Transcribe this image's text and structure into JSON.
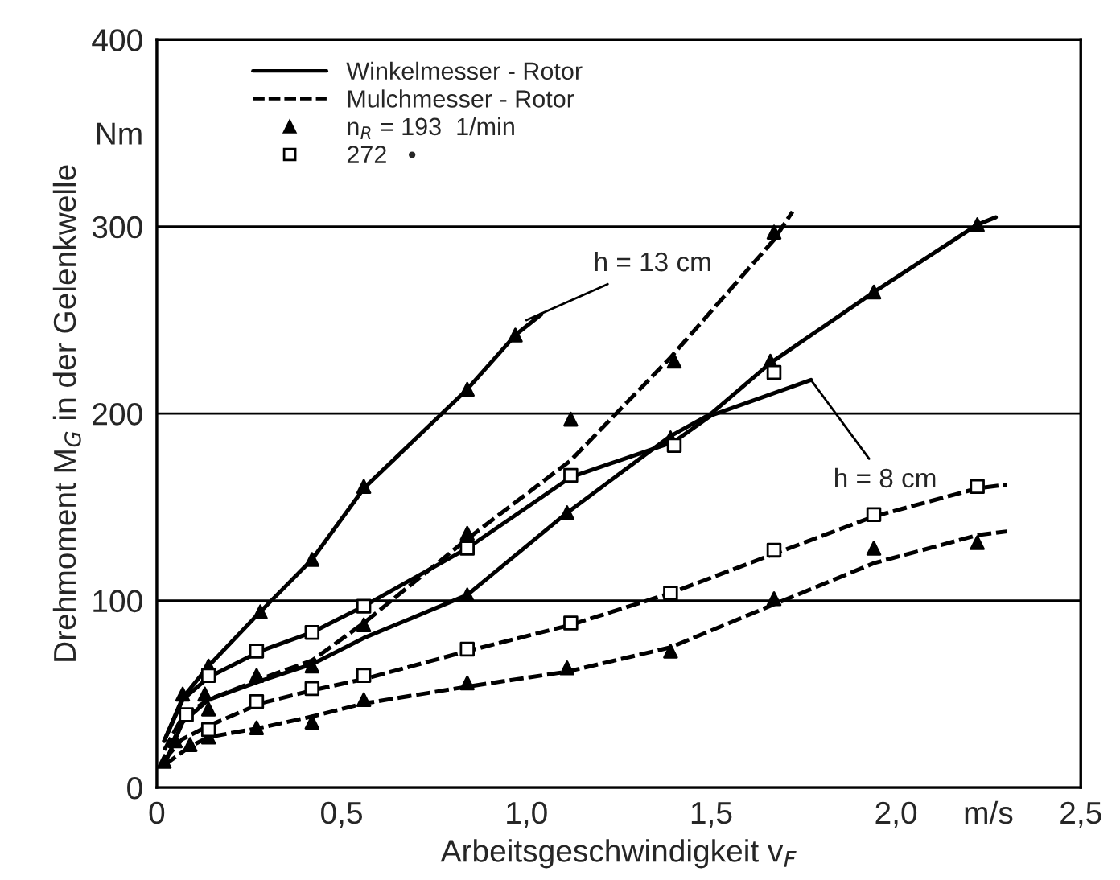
{
  "chart_data": {
    "type": "line",
    "xlabel": "Arbeitsgeschwindigkeit v$_{F}$",
    "ylabel": "Drehmoment M$_{G}$ in der Gelenkwelle",
    "xlim": [
      0,
      2.5
    ],
    "ylim": [
      0,
      400
    ],
    "xticks": [
      0,
      {
        "value": 0.5,
        "label": "0,5"
      },
      {
        "value": 1.0,
        "label": "1,0"
      },
      {
        "value": 1.5,
        "label": "1,5"
      },
      {
        "value": 2.0,
        "label": "2,0"
      },
      {
        "value": 2.25,
        "label": "m/s"
      },
      {
        "value": 2.5,
        "label": "2,5"
      }
    ],
    "yticks": [
      0,
      100,
      200,
      300,
      {
        "value": 350,
        "label": "Nm"
      },
      400
    ],
    "grid": true,
    "legend": "top left",
    "series": [
      {
        "name": "Winkelmesser - Rotor",
        "color": "#000000",
        "line_style": "solid",
        "marker": "none",
        "x": [
          0.02,
          0.07,
          0.14,
          0.28,
          0.42,
          0.56,
          0.84,
          0.97,
          1.04
        ],
        "values": [
          25,
          48,
          65,
          94,
          122,
          160,
          213,
          242,
          253
        ]
      },
      {
        "color": "#000000",
        "line_style": "solid",
        "marker": "none",
        "x": [
          0.02,
          0.07,
          0.14,
          0.28,
          0.42,
          0.56,
          0.84,
          1.11,
          1.39,
          1.5,
          1.66,
          1.94,
          2.22,
          2.27
        ],
        "values": [
          12,
          35,
          47,
          57,
          66,
          80,
          103,
          147,
          188,
          200,
          227,
          265,
          301,
          305
        ]
      },
      {
        "color": "#000000",
        "line_style": "solid",
        "marker": "none",
        "x": [
          0.02,
          0.07,
          0.14,
          0.28,
          0.42,
          0.56,
          0.84,
          1.12,
          1.4,
          1.5,
          1.77
        ],
        "values": [
          25,
          47,
          59,
          73,
          83,
          97,
          128,
          166,
          185,
          199,
          218
        ]
      },
      {
        "name": "Mulchmesser - Rotor",
        "color": "#000000",
        "line_style": "dashed",
        "marker": "none",
        "x": [
          0.02,
          0.07,
          0.14,
          0.28,
          0.42,
          0.56,
          0.84,
          1.12,
          1.39,
          1.67,
          1.72
        ],
        "values": [
          20,
          38,
          47,
          58,
          68,
          88,
          133,
          175,
          230,
          293,
          308
        ]
      },
      {
        "color": "#000000",
        "line_style": "dashed",
        "marker": "none",
        "x": [
          0.02,
          0.07,
          0.14,
          0.28,
          0.42,
          0.56,
          0.84,
          1.12,
          1.39,
          1.67,
          1.94,
          2.22,
          2.3
        ],
        "values": [
          15,
          26,
          33,
          45,
          52,
          58,
          73,
          87,
          104,
          125,
          145,
          160,
          162
        ]
      },
      {
        "color": "#000000",
        "line_style": "dashed",
        "marker": "none",
        "x": [
          0.02,
          0.09,
          0.14,
          0.28,
          0.42,
          0.56,
          0.84,
          1.11,
          1.39,
          1.67,
          1.94,
          2.22,
          2.3
        ],
        "values": [
          12,
          22,
          27,
          32,
          38,
          45,
          54,
          62,
          75,
          98,
          120,
          135,
          137
        ]
      },
      {
        "type": "scatter",
        "name": "n$_{R}$ = 193  1/min",
        "color": "#000000",
        "marker": "triangle",
        "x": [
          0.14,
          0.28,
          0.42,
          0.56,
          0.84,
          0.97,
          0.02,
          0.07,
          0.05,
          0.09,
          0.13,
          0.14,
          0.14,
          0.27,
          0.27,
          0.42,
          0.42,
          0.56,
          0.56,
          0.84,
          0.84,
          0.84,
          1.11,
          1.11,
          1.39,
          1.67,
          1.94,
          2.22,
          1.12,
          1.4,
          1.67,
          1.66,
          1.94,
          2.22,
          1.39
        ],
        "values": [
          65,
          94,
          122,
          161,
          213,
          242,
          14,
          50,
          25,
          23,
          50,
          42,
          27,
          32,
          60,
          65,
          35,
          47,
          87,
          103,
          136,
          56,
          147,
          64,
          73,
          101,
          128,
          131,
          197,
          228,
          297,
          228,
          265,
          301,
          187
        ]
      },
      {
        "type": "scatter",
        "name": "272   •",
        "color": "#000000",
        "marker": "square",
        "x": [
          0.14,
          0.27,
          0.42,
          0.56,
          0.84,
          0.14,
          0.27,
          0.42,
          0.56,
          0.84,
          0.08,
          1.12,
          1.4,
          1.12,
          1.39,
          1.67,
          1.94,
          2.22,
          1.67
        ],
        "values": [
          60,
          73,
          83,
          97,
          128,
          31,
          46,
          53,
          60,
          74,
          39,
          167,
          183,
          88,
          104,
          127,
          146,
          161,
          222
        ]
      }
    ],
    "annotations": [
      {
        "text": "h = 13 cm",
        "x": 1.0,
        "y": 250
      },
      {
        "text": "h = 8 cm",
        "x": 1.77,
        "y": 218
      }
    ]
  }
}
